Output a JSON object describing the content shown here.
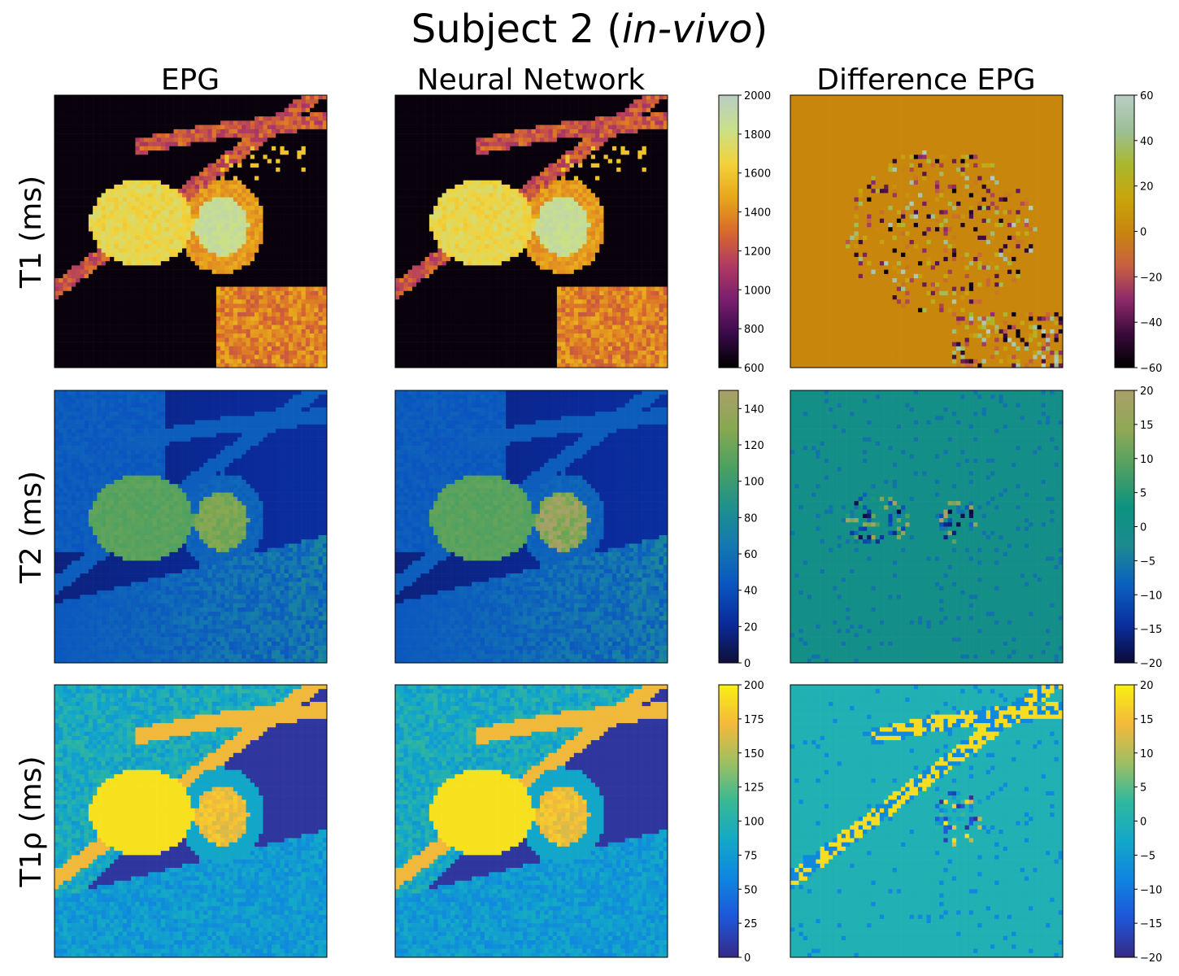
{
  "figure": {
    "title_main": "Subject 2 (",
    "title_italic": "in-vivo",
    "title_end": ")"
  },
  "columns": [
    "EPG",
    "Neural Network",
    "Difference EPG"
  ],
  "rows": [
    "T1 (ms)",
    "T2 (ms)",
    "T1ρ (ms)"
  ],
  "colors": {
    "t1_map": [
      "#000000",
      "#3a0a4a",
      "#7a1f6e",
      "#b03a62",
      "#d86a2c",
      "#e8a71a",
      "#f2d23a",
      "#c8e08a",
      "#b9cdc3"
    ],
    "t1_diff": [
      "#000000",
      "#3a0a3a",
      "#8e2a6a",
      "#c96040",
      "#c8860d",
      "#c8a50d",
      "#a8b830",
      "#9cc09a",
      "#b9cdc3"
    ],
    "t2_map": [
      "#10103a",
      "#0a2a9a",
      "#0a55c0",
      "#1478b0",
      "#1f908c",
      "#4aa062",
      "#86a850",
      "#aaa06a"
    ],
    "t2_diff": [
      "#0a0a3a",
      "#0a30a0",
      "#0a60c0",
      "#1c8a90",
      "#0c9380",
      "#4ea062",
      "#90a856",
      "#aaa06a"
    ],
    "t1rho_map": [
      "#352a86",
      "#1f55d8",
      "#0f84e0",
      "#12a8c8",
      "#38b894",
      "#9ebf62",
      "#f4b93a",
      "#f8f014"
    ],
    "t1rho_diff": [
      "#352a86",
      "#1f55d8",
      "#0f84e0",
      "#12a8c8",
      "#2fb89e",
      "#9ebf62",
      "#f4b93a",
      "#f8f014"
    ]
  },
  "chart_data": [
    {
      "type": "heatmap",
      "row": "T1 (ms)",
      "panels": [
        "EPG",
        "Neural Network"
      ],
      "colorbar": {
        "min": 600,
        "max": 2000,
        "ticks": [
          "600",
          "800",
          "1000",
          "1200",
          "1400",
          "1600",
          "1800",
          "2000"
        ]
      }
    },
    {
      "type": "heatmap",
      "row": "T1 (ms)",
      "panels": [
        "Difference EPG"
      ],
      "colorbar": {
        "min": -60,
        "max": 60,
        "ticks": [
          "−60",
          "−40",
          "−20",
          "0",
          "20",
          "40",
          "60"
        ]
      }
    },
    {
      "type": "heatmap",
      "row": "T2 (ms)",
      "panels": [
        "EPG",
        "Neural Network"
      ],
      "colorbar": {
        "min": 0,
        "max": 150,
        "ticks": [
          "0",
          "20",
          "40",
          "60",
          "80",
          "100",
          "120",
          "140"
        ]
      }
    },
    {
      "type": "heatmap",
      "row": "T2 (ms)",
      "panels": [
        "Difference EPG"
      ],
      "colorbar": {
        "min": -20,
        "max": 20,
        "ticks": [
          "−20",
          "−15",
          "−10",
          "−5",
          "0",
          "5",
          "10",
          "15",
          "20"
        ]
      }
    },
    {
      "type": "heatmap",
      "row": "T1ρ (ms)",
      "panels": [
        "EPG",
        "Neural Network"
      ],
      "colorbar": {
        "min": 0,
        "max": 200,
        "ticks": [
          "0",
          "25",
          "50",
          "75",
          "100",
          "125",
          "150",
          "175",
          "200"
        ]
      }
    },
    {
      "type": "heatmap",
      "row": "T1ρ (ms)",
      "panels": [
        "Difference EPG"
      ],
      "colorbar": {
        "min": -20,
        "max": 20,
        "ticks": [
          "−20",
          "−15",
          "−10",
          "−5",
          "0",
          "5",
          "10",
          "15",
          "20"
        ]
      }
    }
  ]
}
